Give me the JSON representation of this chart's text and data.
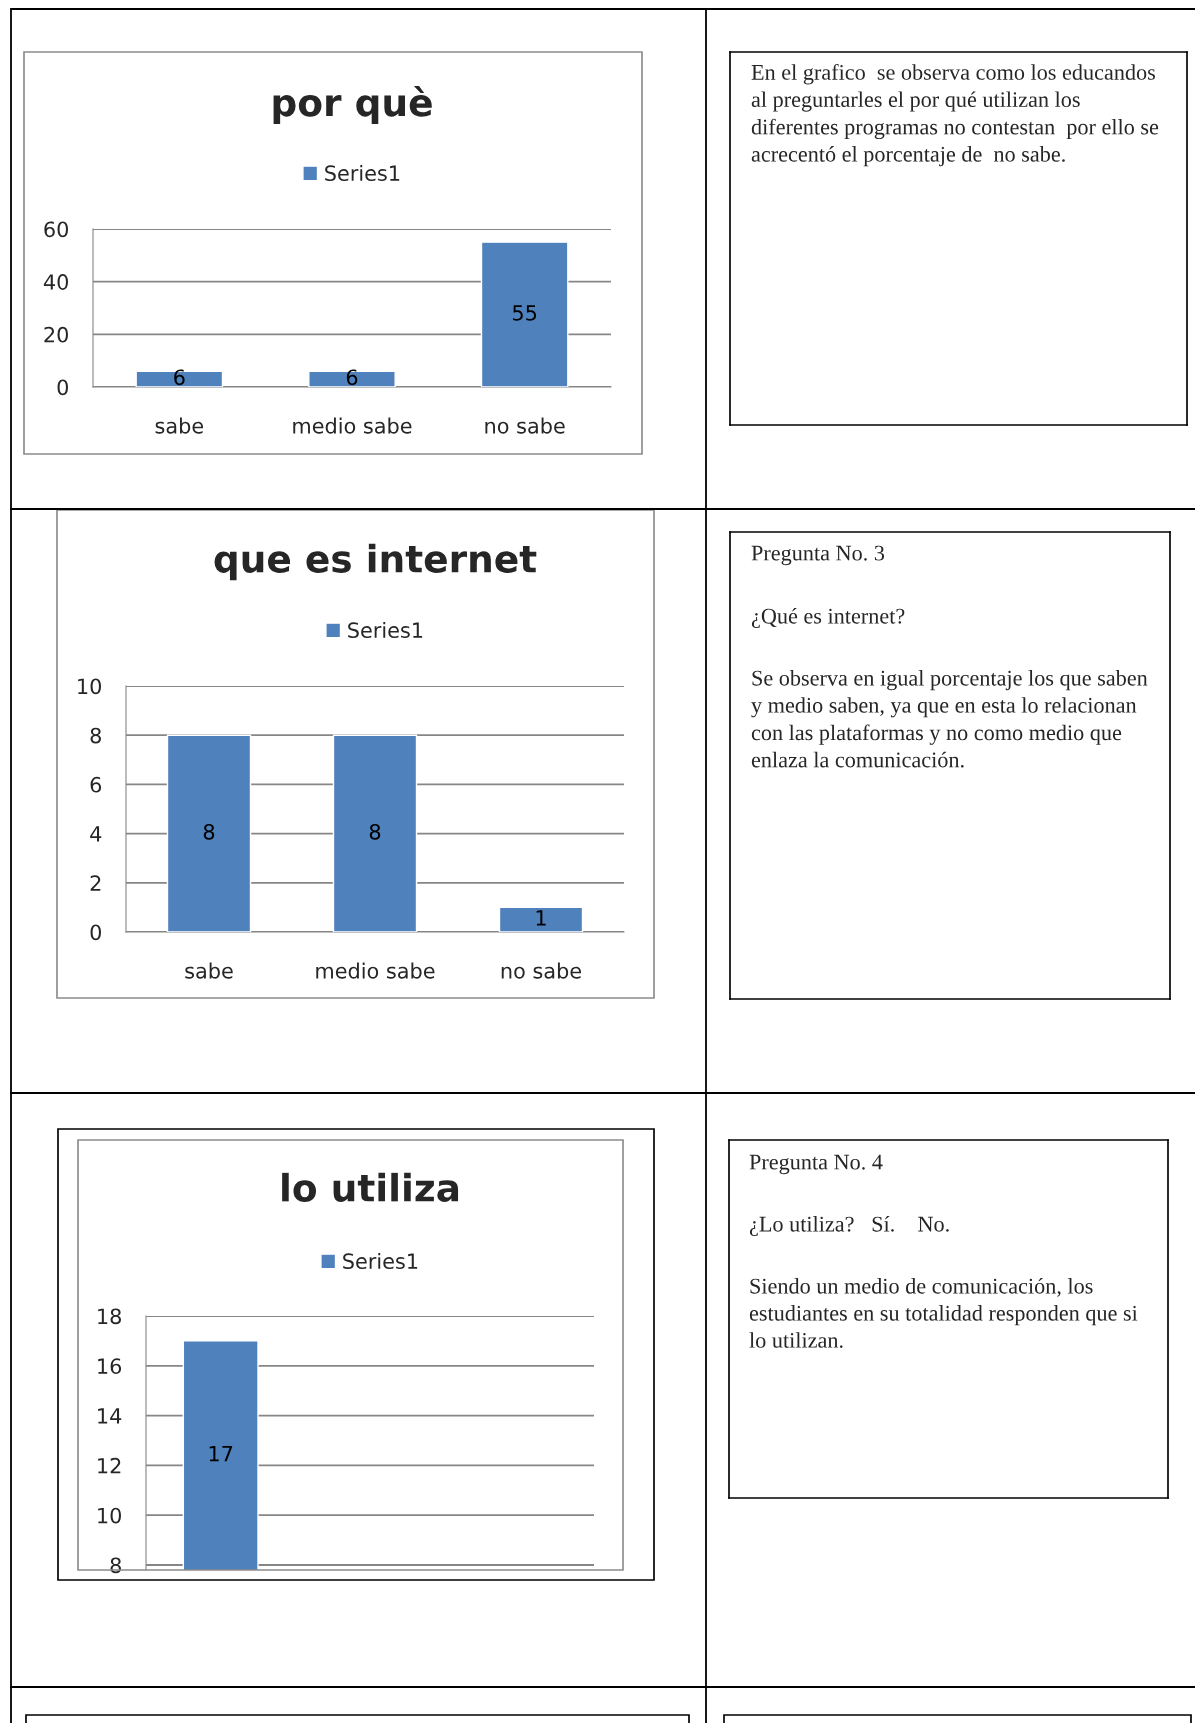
{
  "chart_data": [
    {
      "type": "bar",
      "title": "por què",
      "categories": [
        "sabe",
        "medio sabe",
        "no sabe"
      ],
      "series": [
        {
          "name": "Series1",
          "color": "#4f81bd",
          "values": [
            6,
            6,
            55
          ]
        }
      ],
      "ylim": [
        0,
        60
      ],
      "yticks": [
        0,
        20,
        40,
        60
      ],
      "grid": "y",
      "legend": "top",
      "data_labels": true
    },
    {
      "type": "other",
      "annotations": [
        "En el grafico  se observa como los educandos al preguntarles el por qué utilizan los diferentes programas no contestan  por ello se acrecentó el porcentaje de  no sabe."
      ]
    },
    {
      "type": "bar",
      "title": "que es internet",
      "categories": [
        "sabe",
        "medio sabe",
        "no sabe"
      ],
      "series": [
        {
          "name": "Series1",
          "color": "#4f81bd",
          "values": [
            8,
            8,
            1
          ]
        }
      ],
      "ylim": [
        0,
        10
      ],
      "yticks": [
        0,
        2,
        4,
        6,
        8,
        10
      ],
      "grid": "y",
      "legend": "top",
      "data_labels": true
    },
    {
      "type": "other",
      "annotations": [
        "Pregunta No. 3",
        "¿Qué es internet?",
        "Se observa en igual porcentaje los que saben y medio saben, ya que en esta lo relacionan con las plataformas y no como medio que enlaza la comunicación."
      ]
    },
    {
      "type": "bar",
      "title": "lo utiliza",
      "categories": [
        null,
        null,
        null
      ],
      "series": [
        {
          "name": "Series1",
          "color": "#4f81bd",
          "values": [
            17,
            null,
            null
          ]
        }
      ],
      "ylim": [
        7.8,
        18
      ],
      "yticks": [
        8,
        10,
        12,
        14,
        16,
        18
      ],
      "grid": "y",
      "legend": "top",
      "data_labels": true,
      "tick_labels": "y"
    },
    {
      "type": "other",
      "annotations": [
        "Pregunta No. 4",
        "¿Lo utiliza?   Sí.    No.",
        "Siendo un medio de comunicación, los estudiantes en su totalidad responden que si lo utilizan."
      ]
    }
  ]
}
